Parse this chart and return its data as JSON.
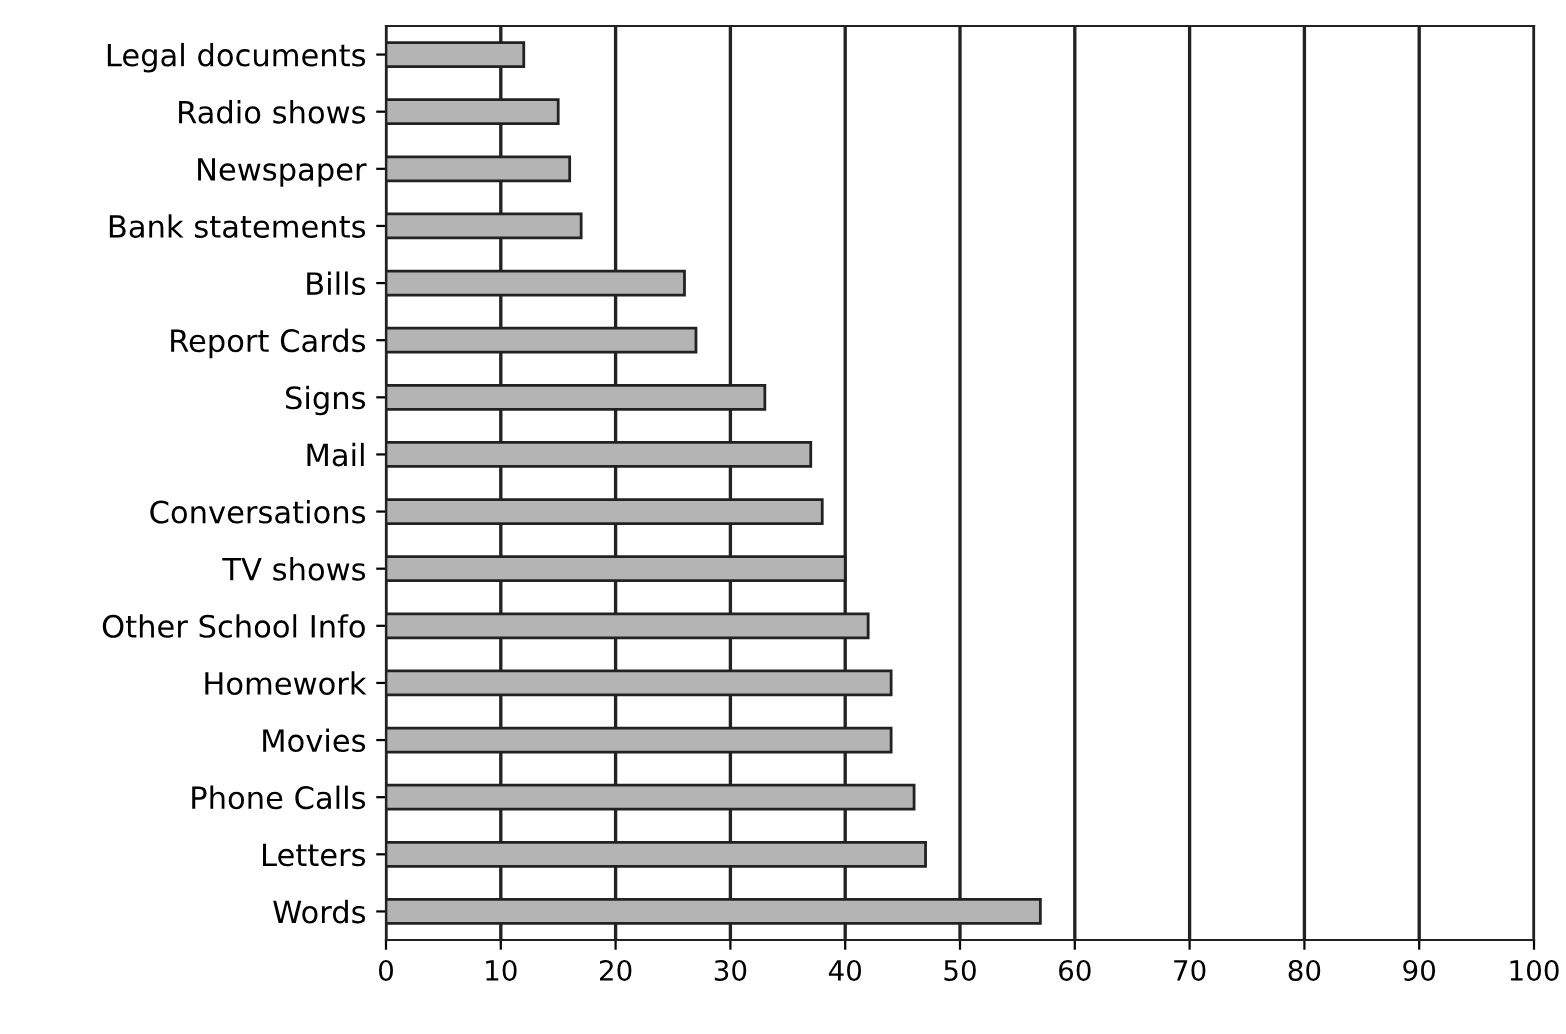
{
  "chart_data": {
    "type": "bar",
    "orientation": "horizontal",
    "categories": [
      "Legal documents",
      "Radio shows",
      "Newspaper",
      "Bank statements",
      "Bills",
      "Report Cards",
      "Signs",
      "Mail",
      "Conversations",
      "TV shows",
      "Other School Info",
      "Homework",
      "Movies",
      "Phone Calls",
      "Letters",
      "Words"
    ],
    "values": [
      12,
      15,
      16,
      17,
      26,
      27,
      33,
      37,
      38,
      40,
      42,
      44,
      44,
      46,
      47,
      57
    ],
    "color": "#b4b4b4",
    "xlim": [
      0,
      100
    ],
    "xticks": [
      0,
      10,
      20,
      30,
      40,
      50,
      60,
      70,
      80,
      90,
      100
    ],
    "grid": "x"
  }
}
